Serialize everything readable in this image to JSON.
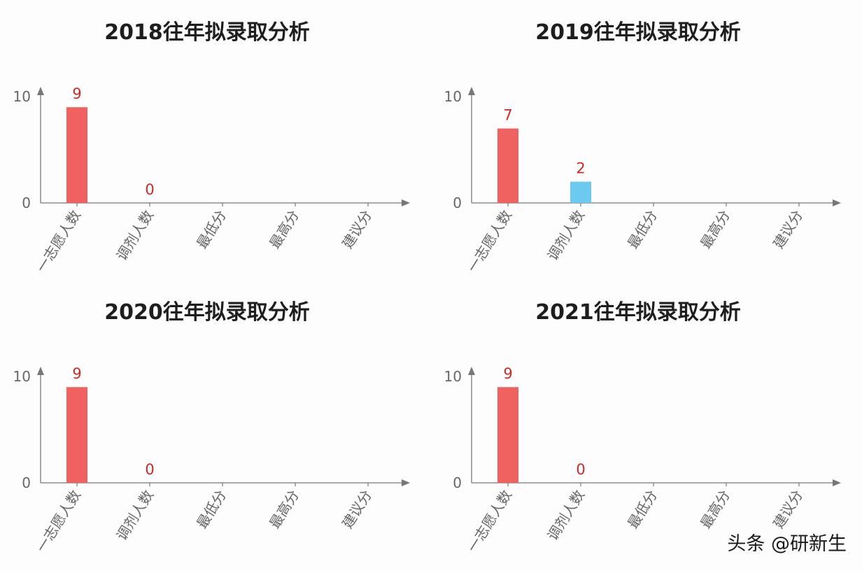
{
  "chart_data": [
    {
      "type": "bar",
      "title": "2018往年拟录取分析",
      "categories": [
        "一志愿人数",
        "调剂人数",
        "最低分",
        "最高分",
        "建议分"
      ],
      "values": [
        9,
        0,
        null,
        null,
        null
      ],
      "data_labels": [
        "9",
        "0",
        "",
        "",
        ""
      ],
      "ylim": [
        0,
        10
      ],
      "yticks": [
        0,
        10
      ],
      "xlabel": "",
      "ylabel": "",
      "grid": false,
      "bar_colors": [
        "#f0625f",
        "#f0625f",
        "#f0625f",
        "#f0625f",
        "#f0625f"
      ]
    },
    {
      "type": "bar",
      "title": "2019往年拟录取分析",
      "categories": [
        "一志愿人数",
        "调剂人数",
        "最低分",
        "最高分",
        "建议分"
      ],
      "values": [
        7,
        2,
        null,
        null,
        null
      ],
      "data_labels": [
        "7",
        "2",
        "",
        "",
        ""
      ],
      "ylim": [
        0,
        10
      ],
      "yticks": [
        0,
        10
      ],
      "xlabel": "",
      "ylabel": "",
      "grid": false,
      "bar_colors": [
        "#f0625f",
        "#6ccaf1",
        "#f0625f",
        "#f0625f",
        "#f0625f"
      ]
    },
    {
      "type": "bar",
      "title": "2020往年拟录取分析",
      "categories": [
        "一志愿人数",
        "调剂人数",
        "最低分",
        "最高分",
        "建议分"
      ],
      "values": [
        9,
        0,
        null,
        null,
        null
      ],
      "data_labels": [
        "9",
        "0",
        "",
        "",
        ""
      ],
      "ylim": [
        0,
        10
      ],
      "yticks": [
        0,
        10
      ],
      "xlabel": "",
      "ylabel": "",
      "grid": false,
      "bar_colors": [
        "#f0625f",
        "#f0625f",
        "#f0625f",
        "#f0625f",
        "#f0625f"
      ]
    },
    {
      "type": "bar",
      "title": "2021往年拟录取分析",
      "categories": [
        "一志愿人数",
        "调剂人数",
        "最低分",
        "最高分",
        "建议分"
      ],
      "values": [
        9,
        0,
        null,
        null,
        null
      ],
      "data_labels": [
        "9",
        "0",
        "",
        "",
        ""
      ],
      "ylim": [
        0,
        10
      ],
      "yticks": [
        0,
        10
      ],
      "xlabel": "",
      "ylabel": "",
      "grid": false,
      "bar_colors": [
        "#f0625f",
        "#f0625f",
        "#f0625f",
        "#f0625f",
        "#f0625f"
      ]
    }
  ],
  "colors": {
    "axis": "#777777",
    "label_text": "#cc2a2a",
    "tick_text": "#666666"
  },
  "watermark": "头条 @研新生"
}
